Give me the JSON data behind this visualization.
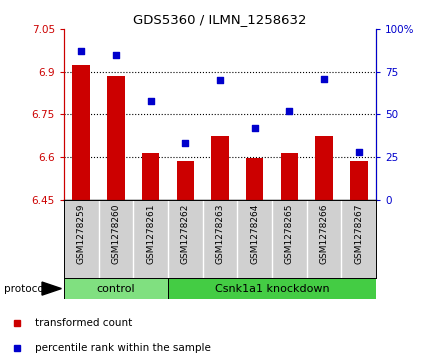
{
  "title": "GDS5360 / ILMN_1258632",
  "samples": [
    "GSM1278259",
    "GSM1278260",
    "GSM1278261",
    "GSM1278262",
    "GSM1278263",
    "GSM1278264",
    "GSM1278265",
    "GSM1278266",
    "GSM1278267"
  ],
  "transformed_count": [
    6.925,
    6.885,
    6.615,
    6.585,
    6.675,
    6.595,
    6.615,
    6.675,
    6.585
  ],
  "percentile_rank": [
    87,
    85,
    58,
    33,
    70,
    42,
    52,
    71,
    28
  ],
  "ylim_left": [
    6.45,
    7.05
  ],
  "ylim_right": [
    0,
    100
  ],
  "yticks_left": [
    6.45,
    6.6,
    6.75,
    6.9,
    7.05
  ],
  "yticks_right": [
    0,
    25,
    50,
    75,
    100
  ],
  "ytick_labels_left": [
    "6.45",
    "6.6",
    "6.75",
    "6.9",
    "7.05"
  ],
  "ytick_labels_right": [
    "0",
    "25",
    "50",
    "75",
    "100%"
  ],
  "bar_color": "#cc0000",
  "dot_color": "#0000cc",
  "bar_width": 0.5,
  "n_control": 3,
  "control_label": "control",
  "knockdown_label": "Csnk1a1 knockdown",
  "protocol_label": "protocol",
  "legend_bar_label": "transformed count",
  "legend_dot_label": "percentile rank within the sample",
  "label_bg": "#d0d0d0",
  "control_bg": "#80e080",
  "knockdown_bg": "#44cc44",
  "figsize": [
    4.4,
    3.63
  ],
  "dpi": 100
}
